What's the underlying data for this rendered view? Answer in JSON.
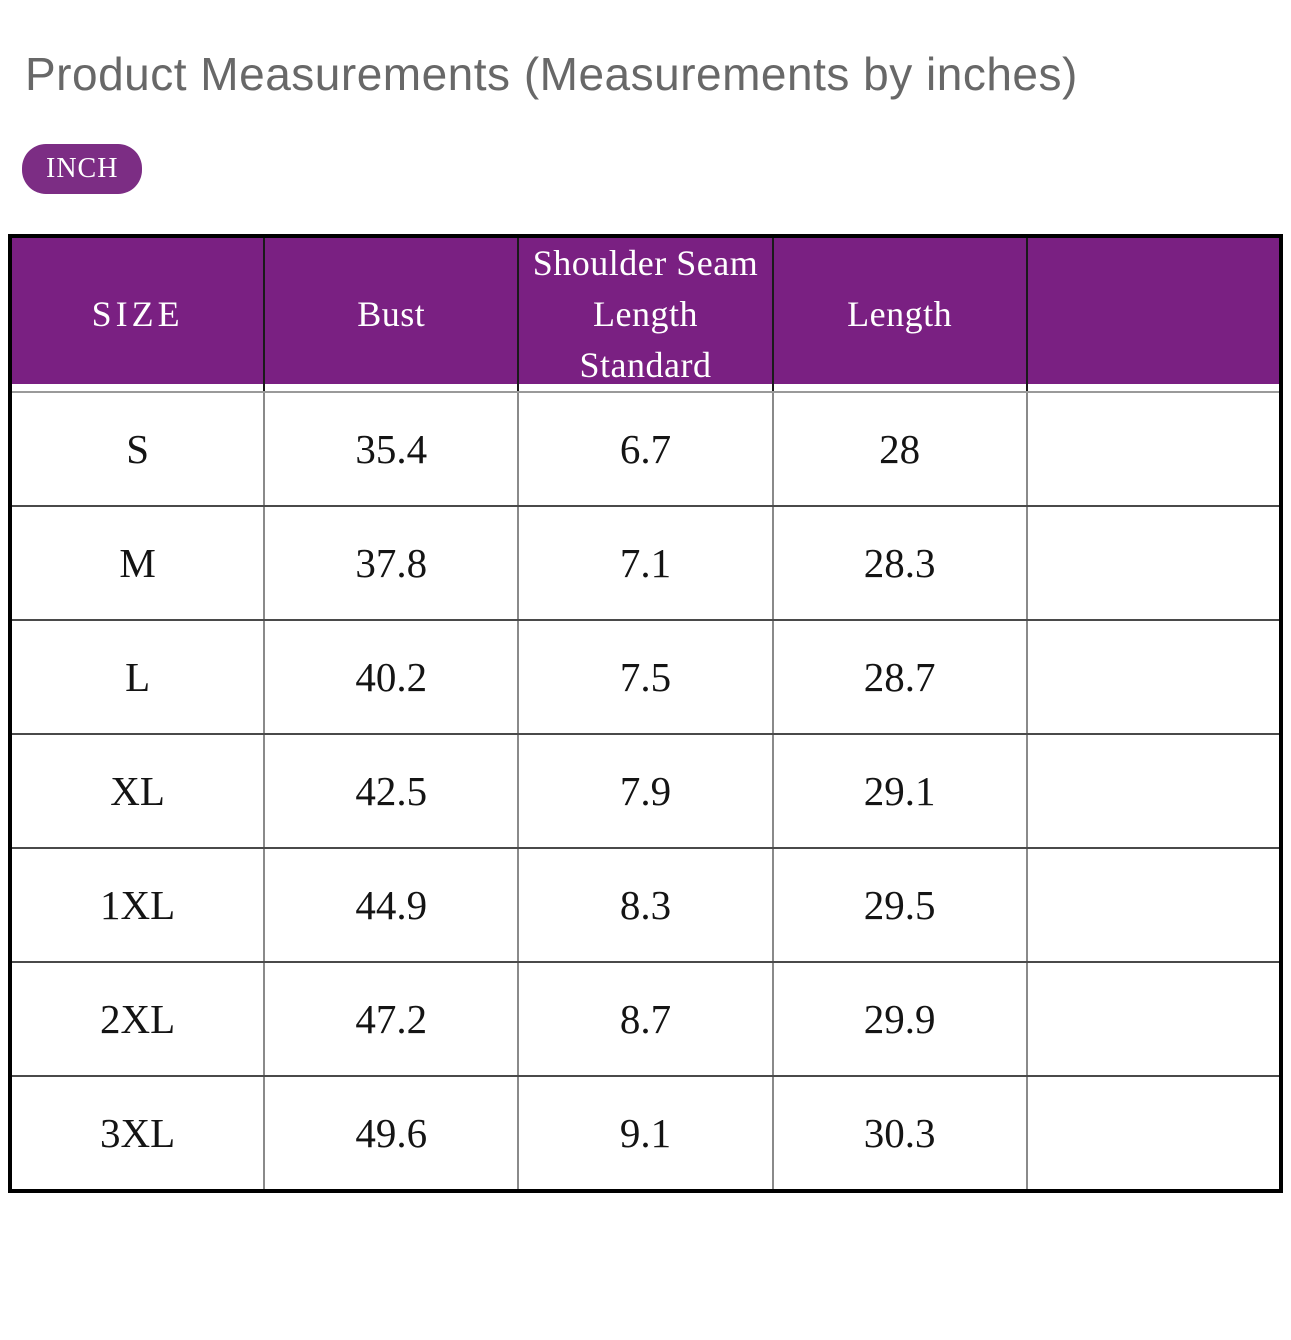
{
  "page": {
    "title": "Product Measurements (Measurements by inches)",
    "unit_badge_label": "INCH"
  },
  "colors": {
    "header_background": "#7a2082",
    "badge_background": "#7c2d84",
    "title_text": "#686868",
    "header_text": "#ffffff",
    "body_text": "#141414",
    "outer_border": "#000000",
    "grid_horizontal": "#4a4a4a",
    "grid_vertical": "#8a8a8a"
  },
  "chart_data": {
    "type": "table",
    "title": "Product Measurements (Measurements by inches)",
    "unit": "INCH",
    "columns": [
      "SIZE",
      "Bust",
      "Shoulder Seam\nLength Standard",
      "Length",
      ""
    ],
    "rows": [
      {
        "cells": [
          "S",
          "35.4",
          "6.7",
          "28",
          ""
        ]
      },
      {
        "cells": [
          "M",
          "37.8",
          "7.1",
          "28.3",
          ""
        ]
      },
      {
        "cells": [
          "L",
          "40.2",
          "7.5",
          "28.7",
          ""
        ]
      },
      {
        "cells": [
          "XL",
          "42.5",
          "7.9",
          "29.1",
          ""
        ]
      },
      {
        "cells": [
          "1XL",
          "44.9",
          "8.3",
          "29.5",
          ""
        ]
      },
      {
        "cells": [
          "2XL",
          "47.2",
          "8.7",
          "29.9",
          ""
        ]
      },
      {
        "cells": [
          "3XL",
          "49.6",
          "9.1",
          "30.3",
          ""
        ]
      }
    ]
  }
}
